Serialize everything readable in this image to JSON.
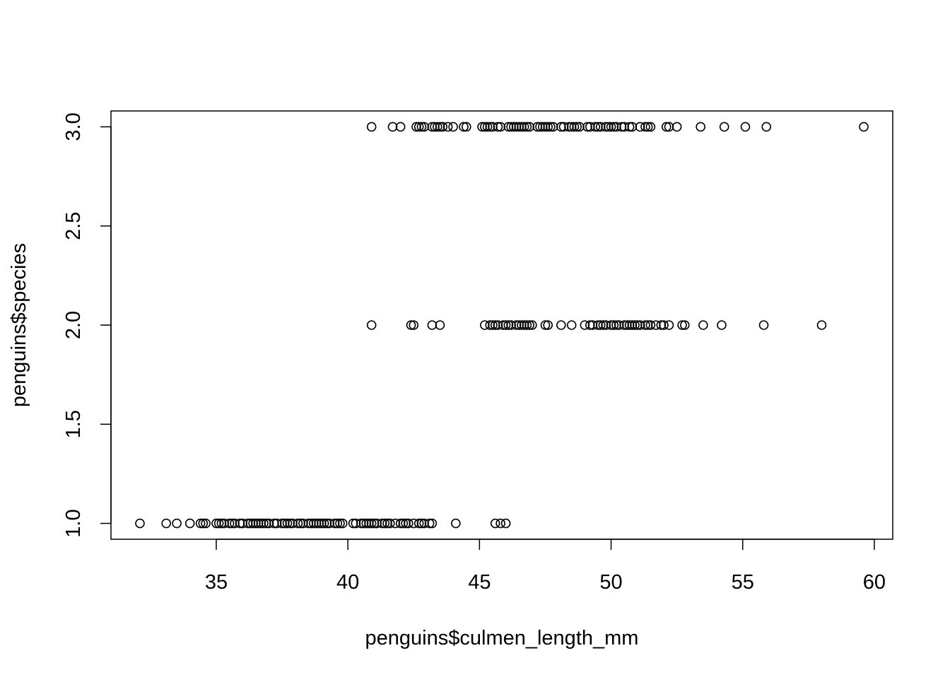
{
  "chart_data": {
    "type": "scatter",
    "title": "",
    "xlabel": "penguins$culmen_length_mm",
    "ylabel": "penguins$species",
    "xlim": [
      31.0,
      60.7
    ],
    "ylim": [
      0.92,
      3.08
    ],
    "x_ticks": [
      35,
      40,
      45,
      50,
      55,
      60
    ],
    "x_tick_labels": [
      "35",
      "40",
      "45",
      "50",
      "55",
      "60"
    ],
    "y_ticks": [
      1.0,
      1.5,
      2.0,
      2.5,
      3.0
    ],
    "y_tick_labels": [
      "1.0",
      "1.5",
      "2.0",
      "2.5",
      "3.0"
    ],
    "grid": false,
    "legend": "none",
    "marker": "open-circle",
    "point_color": "#000000",
    "series": [
      {
        "points": [
          {
            "x": 32.1,
            "y": 1
          },
          {
            "x": 33.1,
            "y": 1
          },
          {
            "x": 33.5,
            "y": 1
          },
          {
            "x": 34.0,
            "y": 1
          },
          {
            "x": 34.4,
            "y": 1
          },
          {
            "x": 34.5,
            "y": 1
          },
          {
            "x": 34.6,
            "y": 1
          },
          {
            "x": 35.0,
            "y": 1
          },
          {
            "x": 35.1,
            "y": 1
          },
          {
            "x": 35.2,
            "y": 1
          },
          {
            "x": 35.3,
            "y": 1
          },
          {
            "x": 35.5,
            "y": 1
          },
          {
            "x": 35.6,
            "y": 1
          },
          {
            "x": 35.7,
            "y": 1
          },
          {
            "x": 35.9,
            "y": 1
          },
          {
            "x": 36.0,
            "y": 1
          },
          {
            "x": 36.2,
            "y": 1
          },
          {
            "x": 36.3,
            "y": 1
          },
          {
            "x": 36.4,
            "y": 1
          },
          {
            "x": 36.5,
            "y": 1
          },
          {
            "x": 36.6,
            "y": 1
          },
          {
            "x": 36.7,
            "y": 1
          },
          {
            "x": 36.8,
            "y": 1
          },
          {
            "x": 36.9,
            "y": 1
          },
          {
            "x": 37.0,
            "y": 1
          },
          {
            "x": 37.2,
            "y": 1
          },
          {
            "x": 37.3,
            "y": 1
          },
          {
            "x": 37.5,
            "y": 1
          },
          {
            "x": 37.6,
            "y": 1
          },
          {
            "x": 37.7,
            "y": 1
          },
          {
            "x": 37.8,
            "y": 1
          },
          {
            "x": 37.9,
            "y": 1
          },
          {
            "x": 38.1,
            "y": 1
          },
          {
            "x": 38.2,
            "y": 1
          },
          {
            "x": 38.3,
            "y": 1
          },
          {
            "x": 38.5,
            "y": 1
          },
          {
            "x": 38.6,
            "y": 1
          },
          {
            "x": 38.7,
            "y": 1
          },
          {
            "x": 38.8,
            "y": 1
          },
          {
            "x": 38.9,
            "y": 1
          },
          {
            "x": 39.0,
            "y": 1
          },
          {
            "x": 39.1,
            "y": 1
          },
          {
            "x": 39.2,
            "y": 1
          },
          {
            "x": 39.3,
            "y": 1
          },
          {
            "x": 39.5,
            "y": 1
          },
          {
            "x": 39.6,
            "y": 1
          },
          {
            "x": 39.7,
            "y": 1
          },
          {
            "x": 39.8,
            "y": 1
          },
          {
            "x": 40.2,
            "y": 1
          },
          {
            "x": 40.3,
            "y": 1
          },
          {
            "x": 40.5,
            "y": 1
          },
          {
            "x": 40.6,
            "y": 1
          },
          {
            "x": 40.7,
            "y": 1
          },
          {
            "x": 40.8,
            "y": 1
          },
          {
            "x": 40.9,
            "y": 1
          },
          {
            "x": 41.0,
            "y": 1
          },
          {
            "x": 41.1,
            "y": 1
          },
          {
            "x": 41.3,
            "y": 1
          },
          {
            "x": 41.4,
            "y": 1
          },
          {
            "x": 41.5,
            "y": 1
          },
          {
            "x": 41.6,
            "y": 1
          },
          {
            "x": 41.8,
            "y": 1
          },
          {
            "x": 42.0,
            "y": 1
          },
          {
            "x": 42.1,
            "y": 1
          },
          {
            "x": 42.2,
            "y": 1
          },
          {
            "x": 42.3,
            "y": 1
          },
          {
            "x": 42.5,
            "y": 1
          },
          {
            "x": 42.7,
            "y": 1
          },
          {
            "x": 42.8,
            "y": 1
          },
          {
            "x": 42.9,
            "y": 1
          },
          {
            "x": 43.1,
            "y": 1
          },
          {
            "x": 43.2,
            "y": 1
          },
          {
            "x": 44.1,
            "y": 1
          },
          {
            "x": 45.6,
            "y": 1
          },
          {
            "x": 45.8,
            "y": 1
          },
          {
            "x": 46.0,
            "y": 1
          },
          {
            "x": 40.9,
            "y": 2
          },
          {
            "x": 42.4,
            "y": 2
          },
          {
            "x": 42.5,
            "y": 2
          },
          {
            "x": 43.2,
            "y": 2
          },
          {
            "x": 43.5,
            "y": 2
          },
          {
            "x": 45.2,
            "y": 2
          },
          {
            "x": 45.4,
            "y": 2
          },
          {
            "x": 45.5,
            "y": 2
          },
          {
            "x": 45.6,
            "y": 2
          },
          {
            "x": 45.7,
            "y": 2
          },
          {
            "x": 45.9,
            "y": 2
          },
          {
            "x": 46.0,
            "y": 2
          },
          {
            "x": 46.1,
            "y": 2
          },
          {
            "x": 46.2,
            "y": 2
          },
          {
            "x": 46.4,
            "y": 2
          },
          {
            "x": 46.5,
            "y": 2
          },
          {
            "x": 46.6,
            "y": 2
          },
          {
            "x": 46.7,
            "y": 2
          },
          {
            "x": 46.8,
            "y": 2
          },
          {
            "x": 46.9,
            "y": 2
          },
          {
            "x": 47.0,
            "y": 2
          },
          {
            "x": 47.5,
            "y": 2
          },
          {
            "x": 47.6,
            "y": 2
          },
          {
            "x": 48.1,
            "y": 2
          },
          {
            "x": 48.5,
            "y": 2
          },
          {
            "x": 49.0,
            "y": 2
          },
          {
            "x": 49.2,
            "y": 2
          },
          {
            "x": 49.3,
            "y": 2
          },
          {
            "x": 49.5,
            "y": 2
          },
          {
            "x": 49.6,
            "y": 2
          },
          {
            "x": 49.7,
            "y": 2
          },
          {
            "x": 49.8,
            "y": 2
          },
          {
            "x": 50.0,
            "y": 2
          },
          {
            "x": 50.1,
            "y": 2
          },
          {
            "x": 50.2,
            "y": 2
          },
          {
            "x": 50.3,
            "y": 2
          },
          {
            "x": 50.5,
            "y": 2
          },
          {
            "x": 50.6,
            "y": 2
          },
          {
            "x": 50.7,
            "y": 2
          },
          {
            "x": 50.8,
            "y": 2
          },
          {
            "x": 50.9,
            "y": 2
          },
          {
            "x": 51.0,
            "y": 2
          },
          {
            "x": 51.1,
            "y": 2
          },
          {
            "x": 51.3,
            "y": 2
          },
          {
            "x": 51.4,
            "y": 2
          },
          {
            "x": 51.5,
            "y": 2
          },
          {
            "x": 51.7,
            "y": 2
          },
          {
            "x": 51.9,
            "y": 2
          },
          {
            "x": 52.0,
            "y": 2
          },
          {
            "x": 52.2,
            "y": 2
          },
          {
            "x": 52.7,
            "y": 2
          },
          {
            "x": 52.8,
            "y": 2
          },
          {
            "x": 53.5,
            "y": 2
          },
          {
            "x": 54.2,
            "y": 2
          },
          {
            "x": 55.8,
            "y": 2
          },
          {
            "x": 58.0,
            "y": 2
          },
          {
            "x": 40.9,
            "y": 3
          },
          {
            "x": 41.7,
            "y": 3
          },
          {
            "x": 42.0,
            "y": 3
          },
          {
            "x": 42.6,
            "y": 3
          },
          {
            "x": 42.7,
            "y": 3
          },
          {
            "x": 42.8,
            "y": 3
          },
          {
            "x": 42.9,
            "y": 3
          },
          {
            "x": 43.2,
            "y": 3
          },
          {
            "x": 43.3,
            "y": 3
          },
          {
            "x": 43.4,
            "y": 3
          },
          {
            "x": 43.5,
            "y": 3
          },
          {
            "x": 43.6,
            "y": 3
          },
          {
            "x": 43.8,
            "y": 3
          },
          {
            "x": 44.0,
            "y": 3
          },
          {
            "x": 44.4,
            "y": 3
          },
          {
            "x": 44.5,
            "y": 3
          },
          {
            "x": 45.1,
            "y": 3
          },
          {
            "x": 45.2,
            "y": 3
          },
          {
            "x": 45.3,
            "y": 3
          },
          {
            "x": 45.4,
            "y": 3
          },
          {
            "x": 45.5,
            "y": 3
          },
          {
            "x": 45.7,
            "y": 3
          },
          {
            "x": 45.8,
            "y": 3
          },
          {
            "x": 46.1,
            "y": 3
          },
          {
            "x": 46.2,
            "y": 3
          },
          {
            "x": 46.3,
            "y": 3
          },
          {
            "x": 46.4,
            "y": 3
          },
          {
            "x": 46.5,
            "y": 3
          },
          {
            "x": 46.6,
            "y": 3
          },
          {
            "x": 46.7,
            "y": 3
          },
          {
            "x": 46.8,
            "y": 3
          },
          {
            "x": 46.9,
            "y": 3
          },
          {
            "x": 47.2,
            "y": 3
          },
          {
            "x": 47.3,
            "y": 3
          },
          {
            "x": 47.4,
            "y": 3
          },
          {
            "x": 47.5,
            "y": 3
          },
          {
            "x": 47.6,
            "y": 3
          },
          {
            "x": 47.7,
            "y": 3
          },
          {
            "x": 47.8,
            "y": 3
          },
          {
            "x": 48.1,
            "y": 3
          },
          {
            "x": 48.2,
            "y": 3
          },
          {
            "x": 48.4,
            "y": 3
          },
          {
            "x": 48.5,
            "y": 3
          },
          {
            "x": 48.6,
            "y": 3
          },
          {
            "x": 48.7,
            "y": 3
          },
          {
            "x": 48.8,
            "y": 3
          },
          {
            "x": 49.1,
            "y": 3
          },
          {
            "x": 49.2,
            "y": 3
          },
          {
            "x": 49.4,
            "y": 3
          },
          {
            "x": 49.5,
            "y": 3
          },
          {
            "x": 49.6,
            "y": 3
          },
          {
            "x": 49.8,
            "y": 3
          },
          {
            "x": 49.9,
            "y": 3
          },
          {
            "x": 50.0,
            "y": 3
          },
          {
            "x": 50.1,
            "y": 3
          },
          {
            "x": 50.2,
            "y": 3
          },
          {
            "x": 50.4,
            "y": 3
          },
          {
            "x": 50.5,
            "y": 3
          },
          {
            "x": 50.7,
            "y": 3
          },
          {
            "x": 50.8,
            "y": 3
          },
          {
            "x": 51.1,
            "y": 3
          },
          {
            "x": 51.3,
            "y": 3
          },
          {
            "x": 51.4,
            "y": 3
          },
          {
            "x": 51.5,
            "y": 3
          },
          {
            "x": 52.1,
            "y": 3
          },
          {
            "x": 52.2,
            "y": 3
          },
          {
            "x": 52.5,
            "y": 3
          },
          {
            "x": 53.4,
            "y": 3
          },
          {
            "x": 54.3,
            "y": 3
          },
          {
            "x": 55.1,
            "y": 3
          },
          {
            "x": 55.9,
            "y": 3
          },
          {
            "x": 59.6,
            "y": 3
          }
        ]
      }
    ]
  }
}
